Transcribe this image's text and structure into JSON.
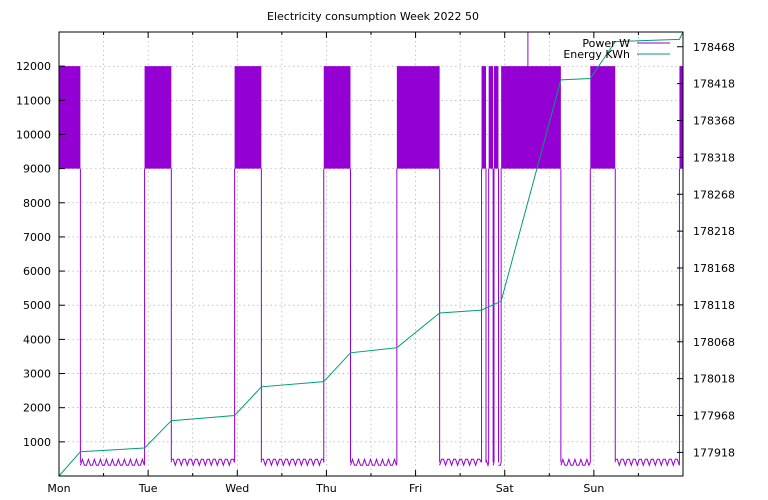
{
  "chart_data": {
    "type": "line",
    "title": "Electricity consumption Week 2022 50",
    "x_tick_labels": [
      "Mon",
      "Tue",
      "Wed",
      "Thu",
      "Fri",
      "Sat",
      "Sun"
    ],
    "xlim_days": [
      0,
      7
    ],
    "y_left": {
      "ylim": [
        0,
        13000
      ],
      "ticks": [
        1000,
        2000,
        3000,
        4000,
        5000,
        6000,
        7000,
        8000,
        9000,
        10000,
        11000,
        12000
      ]
    },
    "y_right": {
      "ylim": [
        177886,
        178488
      ],
      "ticks": [
        177918,
        177968,
        178018,
        178068,
        178118,
        178168,
        178218,
        178268,
        178318,
        178368,
        178418,
        178468
      ]
    },
    "grid": true,
    "legend_position": "top-right",
    "series": [
      {
        "name": "Power W",
        "axis": "left",
        "color": "#9400d3",
        "baseline_w": 400,
        "low_w": 9000,
        "high_w": 12000,
        "peak_w": 13000,
        "active_intervals_days": [
          [
            0.0,
            0.24
          ],
          [
            0.96,
            1.26
          ],
          [
            1.97,
            2.27
          ],
          [
            2.97,
            3.27
          ],
          [
            3.79,
            4.27
          ],
          [
            4.74,
            4.79
          ],
          [
            4.82,
            4.87
          ],
          [
            4.88,
            4.93
          ],
          [
            4.96,
            5.63
          ],
          [
            5.96,
            6.24
          ],
          [
            6.96,
            7.0
          ]
        ],
        "peak_day": 5.26
      },
      {
        "name": "Energy KWh",
        "axis": "right",
        "color": "#009e73",
        "points": [
          [
            0.0,
            177886
          ],
          [
            0.24,
            177919
          ],
          [
            0.96,
            177924
          ],
          [
            1.26,
            177961
          ],
          [
            1.97,
            177968
          ],
          [
            2.27,
            178007
          ],
          [
            2.97,
            178014
          ],
          [
            3.27,
            178053
          ],
          [
            3.79,
            178060
          ],
          [
            4.27,
            178107
          ],
          [
            4.74,
            178111
          ],
          [
            4.96,
            178123
          ],
          [
            5.63,
            178423
          ],
          [
            5.96,
            178425
          ],
          [
            6.24,
            178475
          ],
          [
            6.96,
            178478
          ],
          [
            7.0,
            178488
          ]
        ]
      }
    ]
  }
}
